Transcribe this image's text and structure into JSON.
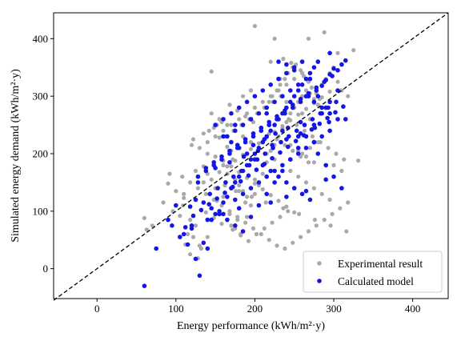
{
  "chart_data": {
    "type": "scatter",
    "xlabel": "Energy performance (kWh/m²·y)",
    "ylabel": "Simulated energy demand (kWh/m²·y)",
    "xlim": [
      -55,
      445
    ],
    "ylim": [
      -52,
      445
    ],
    "xticks": [
      "0",
      "100",
      "200",
      "300",
      "400"
    ],
    "yticks": [
      "0",
      "100",
      "200",
      "300",
      "400"
    ],
    "xtick_values": [
      0,
      100,
      200,
      300,
      400
    ],
    "ytick_values": [
      0,
      100,
      200,
      300,
      400
    ],
    "grid": false,
    "legend_position": "lower-right",
    "reference_line": {
      "style": "dashed",
      "from": [
        -55,
        -55
      ],
      "to": [
        445,
        445
      ],
      "color": "#000000"
    },
    "series": [
      {
        "name": "Experimental result",
        "color": "#a9a9a9",
        "x": [
          200,
          225,
          288,
          268,
          145,
          331,
          325,
          305,
          280,
          60,
          63,
          70,
          96,
          84,
          92,
          90,
          100,
          110,
          109,
          118,
          125,
          115,
          122,
          130,
          132,
          128,
          118,
          112,
          105,
          110,
          140,
          135,
          145,
          150,
          152,
          160,
          140,
          120,
          122,
          135,
          142,
          148,
          152,
          158,
          155,
          165,
          170,
          172,
          160,
          165,
          175,
          180,
          185,
          190,
          188,
          168,
          178,
          175,
          182,
          190,
          195,
          200,
          205,
          210,
          215,
          220,
          225,
          230,
          235,
          240,
          245,
          250,
          255,
          260,
          265,
          270,
          275,
          280,
          285,
          290,
          295,
          300,
          305,
          310,
          318,
          195,
          205,
          212,
          218,
          222,
          228,
          232,
          238,
          242,
          248,
          252,
          258,
          262,
          268,
          272,
          278,
          282,
          150,
          160,
          170,
          180,
          190,
          200,
          210,
          220,
          230,
          240,
          250,
          260,
          270,
          280,
          168,
          178,
          188,
          198,
          208,
          218,
          228,
          238,
          248,
          258,
          268,
          145,
          155,
          165,
          175,
          185,
          195,
          205,
          215,
          225,
          235,
          245,
          255,
          265,
          275,
          285,
          295,
          138,
          148,
          158,
          172,
          182,
          192,
          202,
          212,
          222,
          232,
          242,
          130,
          140,
          150,
          160,
          170,
          180,
          190,
          200,
          210,
          220,
          230,
          240,
          250,
          260,
          125,
          135,
          162,
          176,
          196,
          214,
          236,
          256,
          276,
          296,
          316,
          108,
          118,
          128,
          138,
          148,
          158,
          168,
          178,
          188,
          198,
          208,
          218,
          228,
          238,
          248,
          258,
          268,
          278,
          288,
          298,
          308,
          318,
          185,
          195,
          245,
          255,
          265,
          275,
          300,
          310,
          240,
          250,
          260,
          270,
          232,
          242,
          220,
          236,
          246,
          200,
          180,
          160,
          150,
          170,
          140,
          163,
          173,
          183,
          193,
          203,
          213,
          223,
          233,
          243,
          253,
          263,
          273,
          283,
          293,
          303,
          313,
          155,
          165,
          175,
          185,
          195,
          205,
          215,
          225,
          235,
          245,
          255,
          265,
          275,
          285,
          295
        ],
        "y": [
          422,
          400,
          411,
          400,
          343,
          188,
          380,
          375,
          360,
          88,
          68,
          75,
          100,
          115,
          165,
          148,
          135,
          130,
          110,
          85,
          75,
          60,
          55,
          40,
          35,
          18,
          25,
          42,
          92,
          123,
          165,
          178,
          155,
          140,
          118,
          125,
          200,
          215,
          225,
          235,
          240,
          245,
          250,
          255,
          228,
          212,
          205,
          190,
          180,
          165,
          155,
          145,
          135,
          125,
          115,
          95,
          85,
          70,
          60,
          90,
          110,
          130,
          145,
          165,
          185,
          205,
          215,
          230,
          245,
          255,
          270,
          280,
          290,
          300,
          310,
          305,
          295,
          285,
          320,
          330,
          340,
          350,
          325,
          310,
          300,
          260,
          270,
          280,
          290,
          300,
          310,
          320,
          330,
          340,
          350,
          355,
          345,
          335,
          325,
          315,
          305,
          295,
          195,
          188,
          178,
          168,
          158,
          148,
          138,
          128,
          118,
          108,
          98,
          200,
          210,
          220,
          285,
          275,
          265,
          255,
          245,
          235,
          225,
          215,
          205,
          195,
          185,
          270,
          260,
          250,
          240,
          230,
          220,
          210,
          200,
          190,
          180,
          170,
          160,
          150,
          140,
          130,
          120,
          98,
          88,
          78,
          68,
          58,
          48,
          60,
          70,
          80,
          90,
          100,
          210,
          220,
          230,
          240,
          250,
          260,
          270,
          280,
          290,
          300,
          310,
          320,
          330,
          340,
          170,
          150,
          145,
          135,
          125,
          115,
          105,
          95,
          85,
          75,
          65,
          160,
          150,
          140,
          130,
          120,
          110,
          100,
          90,
          80,
          70,
          60,
          50,
          40,
          35,
          45,
          55,
          65,
          75,
          85,
          95,
          105,
          115,
          300,
          310,
          215,
          205,
          195,
          185,
          180,
          170,
          290,
          280,
          270,
          260,
          330,
          340,
          360,
          365,
          358,
          155,
          135,
          115,
          95,
          75,
          55,
          230,
          240,
          250,
          260,
          270,
          280,
          290,
          300,
          260,
          250,
          240,
          230,
          220,
          210,
          200,
          190,
          168,
          178,
          188,
          198,
          208,
          218,
          228,
          238,
          248,
          258,
          268,
          278,
          288,
          298,
          308
        ]
      },
      {
        "name": "Calculated model",
        "color": "#1515e6",
        "x": [
          60,
          75,
          90,
          95,
          100,
          110,
          115,
          120,
          118,
          125,
          130,
          128,
          135,
          140,
          145,
          150,
          155,
          160,
          165,
          170,
          175,
          180,
          185,
          190,
          195,
          200,
          205,
          210,
          215,
          220,
          225,
          230,
          235,
          240,
          245,
          250,
          255,
          260,
          265,
          270,
          275,
          280,
          285,
          290,
          295,
          300,
          305,
          310,
          315,
          105,
          112,
          122,
          132,
          142,
          152,
          162,
          172,
          182,
          192,
          202,
          212,
          222,
          232,
          242,
          252,
          262,
          272,
          282,
          292,
          302,
          312,
          138,
          148,
          158,
          168,
          178,
          188,
          198,
          208,
          218,
          228,
          238,
          248,
          258,
          268,
          278,
          288,
          298,
          143,
          153,
          163,
          173,
          183,
          193,
          203,
          213,
          223,
          233,
          243,
          253,
          263,
          273,
          283,
          293,
          303,
          125,
          135,
          145,
          155,
          165,
          175,
          185,
          195,
          205,
          215,
          225,
          235,
          245,
          255,
          265,
          275,
          285,
          295,
          305,
          128,
          138,
          148,
          158,
          168,
          178,
          188,
          198,
          208,
          218,
          228,
          238,
          248,
          258,
          268,
          278,
          160,
          170,
          180,
          190,
          200,
          210,
          220,
          230,
          240,
          250,
          260,
          270,
          280,
          290,
          300,
          310,
          150,
          160,
          170,
          180,
          190,
          200,
          210,
          220,
          230,
          240,
          250,
          260,
          270,
          280,
          290,
          175,
          185,
          195,
          205,
          215,
          225,
          235,
          245,
          255,
          265,
          275,
          285,
          295,
          165,
          175,
          185,
          195,
          205,
          215,
          225,
          235,
          245,
          255,
          265,
          275,
          285,
          295,
          305,
          230,
          240,
          250,
          295,
          315,
          290,
          265,
          240,
          220,
          180,
          160,
          140,
          120,
          175,
          195,
          215,
          235,
          255,
          275,
          198,
          212,
          226,
          242,
          258,
          150,
          168,
          186,
          204,
          222,
          240,
          258,
          276,
          294
        ],
        "y": [
          -30,
          35,
          85,
          75,
          110,
          60,
          42,
          70,
          108,
          17,
          -12,
          150,
          45,
          35,
          85,
          95,
          100,
          115,
          125,
          140,
          150,
          160,
          170,
          180,
          190,
          200,
          210,
          220,
          230,
          240,
          250,
          260,
          270,
          280,
          290,
          300,
          310,
          320,
          330,
          340,
          350,
          360,
          318,
          328,
          338,
          348,
          345,
          355,
          362,
          55,
          72,
          92,
          102,
          112,
          122,
          132,
          142,
          152,
          162,
          172,
          182,
          192,
          202,
          212,
          222,
          232,
          242,
          252,
          262,
          272,
          282,
          175,
          185,
          195,
          205,
          215,
          225,
          235,
          245,
          255,
          265,
          275,
          285,
          295,
          305,
          315,
          325,
          335,
          130,
          140,
          150,
          160,
          170,
          180,
          190,
          200,
          210,
          220,
          230,
          240,
          250,
          260,
          270,
          280,
          290,
          120,
          115,
          105,
          95,
          85,
          75,
          65,
          90,
          110,
          130,
          150,
          170,
          190,
          210,
          230,
          250,
          270,
          290,
          310,
          160,
          170,
          180,
          190,
          200,
          210,
          220,
          230,
          240,
          250,
          260,
          270,
          280,
          290,
          300,
          310,
          230,
          220,
          210,
          200,
          190,
          180,
          170,
          160,
          150,
          140,
          130,
          120,
          200,
          180,
          160,
          140,
          250,
          260,
          270,
          280,
          290,
          300,
          310,
          320,
          330,
          340,
          350,
          360,
          330,
          300,
          280,
          120,
          130,
          140,
          150,
          160,
          170,
          180,
          190,
          200,
          210,
          220,
          230,
          240,
          230,
          240,
          250,
          260,
          270,
          280,
          290,
          300,
          310,
          320,
          300,
          290,
          280,
          270,
          260,
          360,
          355,
          345,
          375,
          260,
          155,
          135,
          125,
          115,
          105,
          95,
          85,
          75,
          250,
          260,
          270,
          240,
          230,
          220,
          215,
          225,
          235,
          245,
          255,
          175,
          185,
          195,
          205,
          215,
          225,
          235,
          245,
          255
        ]
      }
    ]
  }
}
